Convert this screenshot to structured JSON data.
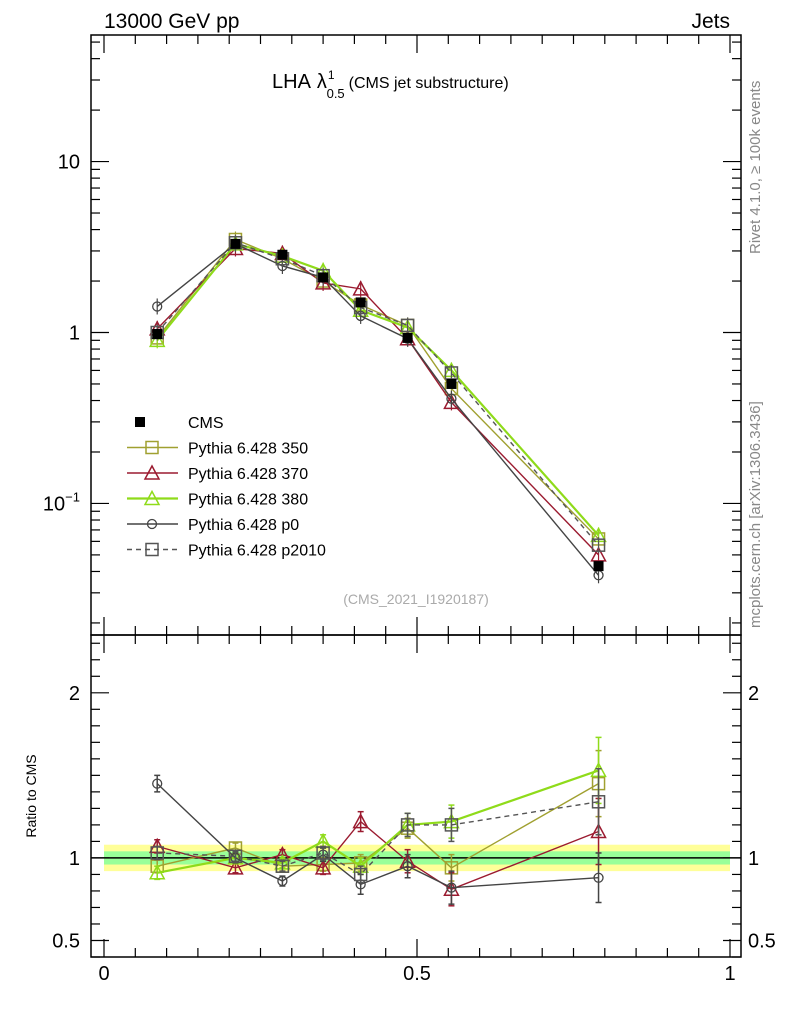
{
  "header": {
    "left": "13000 GeV pp",
    "right": "Jets"
  },
  "side": {
    "top": "Rivet 4.1.0, ≥ 100k events",
    "bottom": "mcplots.cern.ch [arXiv:1306.3436]"
  },
  "chart_data": {
    "type": "line",
    "title": "LHA",
    "title_symbol": "λ",
    "title_sup": "1",
    "title_sub": "0.5",
    "title_suffix": "(CMS jet substructure)",
    "analysis": "(CMS_2021_I1920187)",
    "xlim": [
      0,
      1
    ],
    "x_ticks": [
      "0",
      "0.5",
      "1"
    ],
    "main_y_scale": "log",
    "main_ylim": [
      0.017,
      55
    ],
    "main_y_ticks": [
      "10^-1",
      "1",
      "10"
    ],
    "ratio_ylabel": "Ratio to CMS",
    "ratio_ylim": [
      0.4,
      2.35
    ],
    "ratio_y_ticks": [
      "0.5",
      "1",
      "2"
    ],
    "x": [
      0.085,
      0.21,
      0.285,
      0.35,
      0.41,
      0.485,
      0.555,
      0.79
    ],
    "reference": {
      "name": "CMS",
      "values": [
        0.98,
        3.3,
        2.85,
        2.1,
        1.5,
        0.93,
        0.5,
        0.043
      ],
      "band_inner": 0.04,
      "band_outer": 0.08
    },
    "series": [
      {
        "name": "Pythia 6.428 350",
        "color": "#a0a030",
        "marker": "square",
        "dash": false,
        "values": [
          0.93,
          3.5,
          2.7,
          2.0,
          1.45,
          1.1,
          0.47,
          0.062
        ],
        "ratio": [
          0.95,
          1.06,
          0.95,
          0.96,
          0.97,
          1.18,
          0.94,
          1.45
        ],
        "ratio_err": [
          0.04,
          0.03,
          0.03,
          0.04,
          0.05,
          0.06,
          0.08,
          0.2
        ]
      },
      {
        "name": "Pythia 6.428 370",
        "color": "#9b1b30",
        "marker": "triangle",
        "dash": false,
        "values": [
          1.05,
          3.1,
          2.9,
          1.95,
          1.8,
          0.92,
          0.39,
          0.05
        ],
        "ratio": [
          1.07,
          0.94,
          1.02,
          0.94,
          1.22,
          0.98,
          0.81,
          1.16
        ],
        "ratio_err": [
          0.04,
          0.03,
          0.03,
          0.04,
          0.06,
          0.07,
          0.1,
          0.2
        ]
      },
      {
        "name": "Pythia 6.428 380",
        "color": "#8fdb1a",
        "marker": "triangle",
        "dash": false,
        "values": [
          0.9,
          3.3,
          2.8,
          2.3,
          1.35,
          1.07,
          0.6,
          0.065
        ],
        "ratio": [
          0.91,
          1.0,
          0.97,
          1.1,
          0.95,
          1.2,
          1.22,
          1.53
        ],
        "ratio_err": [
          0.04,
          0.03,
          0.03,
          0.04,
          0.05,
          0.07,
          0.1,
          0.2
        ]
      },
      {
        "name": "Pythia 6.428 p0",
        "color": "#444444",
        "marker": "circle",
        "dash": false,
        "values": [
          1.42,
          3.3,
          2.45,
          2.1,
          1.25,
          0.92,
          0.41,
          0.038
        ],
        "ratio": [
          1.45,
          1.0,
          0.86,
          1.02,
          0.84,
          0.95,
          0.82,
          0.88
        ],
        "ratio_err": [
          0.05,
          0.03,
          0.03,
          0.04,
          0.06,
          0.07,
          0.1,
          0.15
        ]
      },
      {
        "name": "Pythia 6.428 p2010",
        "color": "#555555",
        "marker": "square",
        "dash": true,
        "values": [
          1.0,
          3.35,
          2.7,
          2.15,
          1.4,
          1.1,
          0.58,
          0.057
        ],
        "ratio": [
          1.03,
          1.01,
          0.95,
          1.03,
          0.9,
          1.2,
          1.2,
          1.34
        ],
        "ratio_err": [
          0.04,
          0.03,
          0.03,
          0.04,
          0.05,
          0.07,
          0.1,
          0.2
        ]
      }
    ]
  }
}
